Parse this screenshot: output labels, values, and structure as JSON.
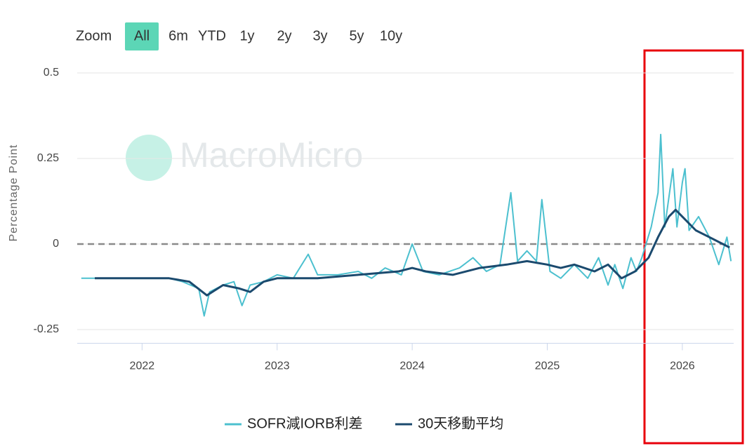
{
  "range_selector": {
    "label": "Zoom",
    "buttons": [
      {
        "text": "All",
        "selected": true,
        "enabled": true
      },
      {
        "text": "6m",
        "selected": false,
        "enabled": true
      },
      {
        "text": "YTD",
        "selected": false,
        "enabled": true
      },
      {
        "text": "1y",
        "selected": false,
        "enabled": true
      },
      {
        "text": "2y",
        "selected": false,
        "enabled": true
      },
      {
        "text": "3y",
        "selected": false,
        "enabled": true
      },
      {
        "text": "5y",
        "selected": false,
        "enabled": false
      },
      {
        "text": "10y",
        "selected": false,
        "enabled": false
      }
    ]
  },
  "watermark": "MacroMicro",
  "chart_data": {
    "type": "line",
    "y_label": "Percentage Point",
    "xlim": [
      2021.52,
      2026.38
    ],
    "xticks": [
      2022,
      2023,
      2024,
      2025,
      2026
    ],
    "ylim": [
      -0.29,
      0.5
    ],
    "yticks": [
      0.5,
      0.25,
      0,
      -0.25
    ],
    "grid": true,
    "zero_line": 0,
    "legend": "bottom",
    "series": [
      {
        "name": "SOFR減IORB利差",
        "color": "#4cc0cf",
        "x": [
          2021.55,
          2021.8,
          2022.0,
          2022.2,
          2022.3,
          2022.42,
          2022.46,
          2022.5,
          2022.6,
          2022.68,
          2022.74,
          2022.8,
          2022.9,
          2023.0,
          2023.12,
          2023.23,
          2023.3,
          2023.45,
          2023.6,
          2023.7,
          2023.8,
          2023.92,
          2024.0,
          2024.08,
          2024.2,
          2024.35,
          2024.45,
          2024.55,
          2024.65,
          2024.73,
          2024.78,
          2024.85,
          2024.92,
          2024.96,
          2025.02,
          2025.1,
          2025.2,
          2025.3,
          2025.38,
          2025.45,
          2025.5,
          2025.56,
          2025.62,
          2025.66,
          2025.7,
          2025.77,
          2025.82,
          2025.84,
          2025.87,
          2025.93,
          2025.96,
          2026.0,
          2026.02,
          2026.05,
          2026.12,
          2026.2,
          2026.27,
          2026.33,
          2026.36
        ],
        "values": [
          -0.1,
          -0.1,
          -0.1,
          -0.1,
          -0.11,
          -0.13,
          -0.21,
          -0.14,
          -0.12,
          -0.11,
          -0.18,
          -0.12,
          -0.11,
          -0.09,
          -0.1,
          -0.03,
          -0.09,
          -0.09,
          -0.08,
          -0.1,
          -0.07,
          -0.09,
          0.0,
          -0.08,
          -0.09,
          -0.07,
          -0.04,
          -0.08,
          -0.06,
          0.15,
          -0.05,
          -0.02,
          -0.05,
          0.13,
          -0.08,
          -0.1,
          -0.06,
          -0.1,
          -0.04,
          -0.12,
          -0.06,
          -0.13,
          -0.04,
          -0.08,
          -0.04,
          0.05,
          0.15,
          0.32,
          0.05,
          0.22,
          0.05,
          0.18,
          0.22,
          0.04,
          0.08,
          0.02,
          -0.06,
          0.02,
          -0.05
        ]
      },
      {
        "name": "30天移動平均",
        "color": "#1b4a6e",
        "x": [
          2021.65,
          2022.2,
          2022.35,
          2022.48,
          2022.6,
          2022.72,
          2022.8,
          2022.9,
          2023.0,
          2023.3,
          2023.6,
          2023.9,
          2024.0,
          2024.1,
          2024.3,
          2024.5,
          2024.7,
          2024.85,
          2025.0,
          2025.1,
          2025.2,
          2025.35,
          2025.45,
          2025.55,
          2025.65,
          2025.75,
          2025.82,
          2025.9,
          2025.95,
          2026.0,
          2026.1,
          2026.2,
          2026.3,
          2026.35
        ],
        "values": [
          -0.1,
          -0.1,
          -0.11,
          -0.15,
          -0.12,
          -0.13,
          -0.14,
          -0.11,
          -0.1,
          -0.1,
          -0.09,
          -0.08,
          -0.07,
          -0.08,
          -0.09,
          -0.07,
          -0.06,
          -0.05,
          -0.06,
          -0.07,
          -0.06,
          -0.08,
          -0.06,
          -0.1,
          -0.08,
          -0.04,
          0.02,
          0.08,
          0.1,
          0.08,
          0.04,
          0.02,
          0.0,
          -0.01
        ]
      }
    ]
  }
}
